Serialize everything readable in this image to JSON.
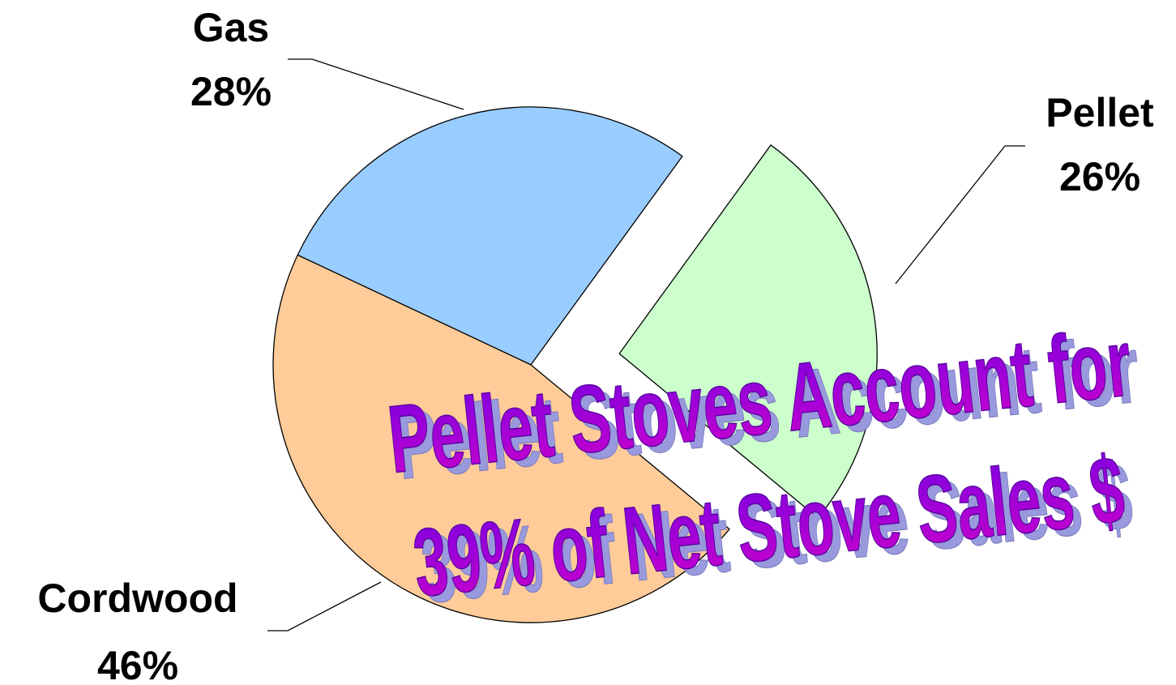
{
  "chart_data": {
    "type": "pie",
    "categories": [
      "Gas",
      "Pellet",
      "Cordwood"
    ],
    "values": [
      28,
      26,
      46
    ],
    "value_labels": [
      "28%",
      "26%",
      "46%"
    ],
    "colors": [
      "#99ccff",
      "#ccffcc",
      "#ffcc99"
    ],
    "exploded": "Pellet",
    "annotation": [
      "Pellet Stoves Account for",
      "39% of Net Stove Sales $"
    ]
  }
}
